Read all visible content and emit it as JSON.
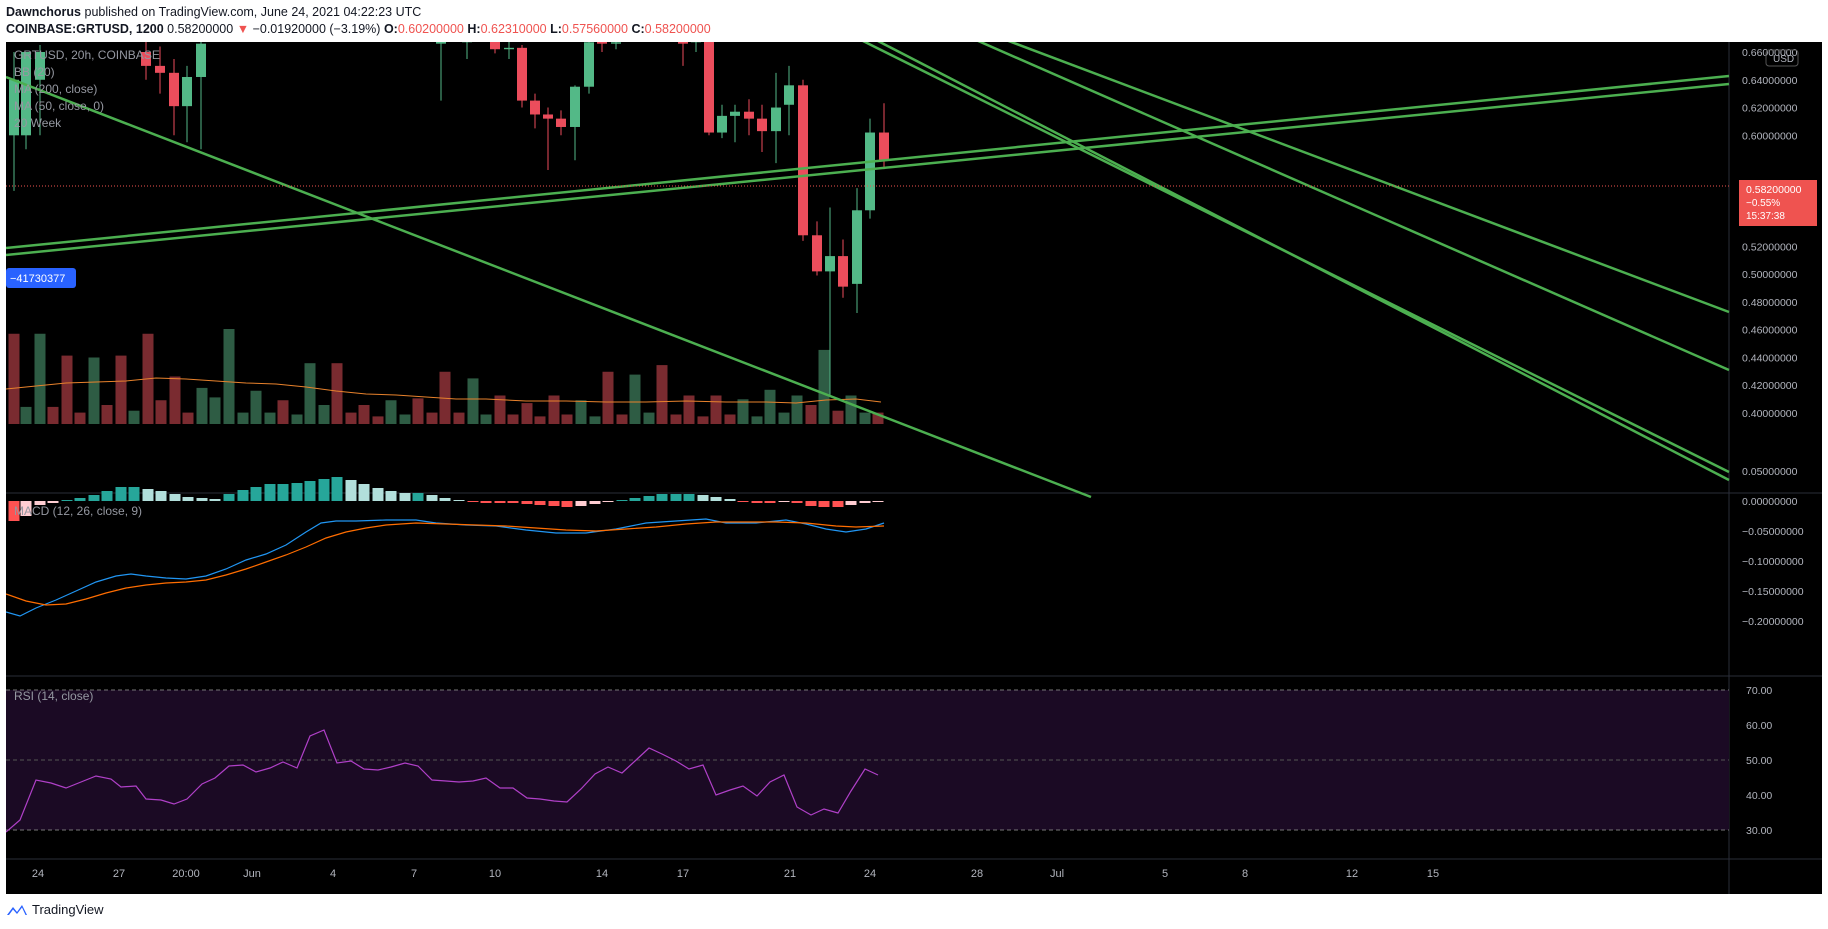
{
  "header": {
    "author": "Dawnchorus",
    "published_text": " published on TradingView.com, June 24, 2021 04:22:23 UTC",
    "symbol": "COINBASE:GRTUSD, 1200",
    "last": "0.58200000",
    "arrow": "▼",
    "change": "−0.01920000 (−3.19%)",
    "o_label": "O:",
    "o_val": "0.60200000",
    "h_label": "H:",
    "h_val": "0.62310000",
    "l_label": "L:",
    "l_val": "0.57560000",
    "c_label": "C:",
    "c_val": "0.58200000"
  },
  "legend": {
    "title": "GRTUSD, 20h, COINBASE",
    "line1": "BB (20)",
    "line2": "MA (200, close)",
    "line3": "MA (50, close, 0)",
    "line4": "20 Week",
    "left_badge": "−41730377"
  },
  "price_axis": {
    "currency": "USD",
    "ticks": [
      "0.66000000",
      "0.64000000",
      "0.62000000",
      "0.60000000",
      "0.56000000",
      "0.54000000",
      "0.52000000",
      "0.50000000",
      "0.48000000",
      "0.46000000",
      "0.44000000",
      "0.42000000",
      "0.40000000"
    ],
    "last_label": "0.58200000",
    "last_pct": "−0.55%",
    "countdown": "15:37:38"
  },
  "macd": {
    "title": "MACD (12, 26, close, 9)",
    "ticks": [
      "0.05000000",
      "0.00000000",
      "−0.05000000",
      "−0.10000000",
      "−0.15000000",
      "−0.20000000"
    ]
  },
  "rsi": {
    "title": "RSI (14, close)",
    "ticks": [
      "70.00",
      "60.00",
      "50.00",
      "40.00",
      "30.00"
    ]
  },
  "time_axis": {
    "labels": [
      "24",
      "27",
      "20:00",
      "Jun",
      "4",
      "7",
      "10",
      "14",
      "17",
      "21",
      "24",
      "28",
      "Jul",
      "5",
      "8",
      "12",
      "15"
    ]
  },
  "footer": {
    "brand": "TradingView"
  },
  "colors": {
    "up": "#26a69a",
    "down": "#ef5350",
    "up_body": "#53b987",
    "down_body": "#eb4d5c",
    "trend": "#4caf50",
    "macd": "#2196f3",
    "signal": "#ff6d00",
    "rsi": "#9c27b0"
  },
  "chart_data": {
    "type": "candlestick",
    "price_range": [
      0.39,
      0.67
    ],
    "candles_ohlc_sample": [
      {
        "t": "Jun 21",
        "o": 0.632,
        "h": 0.635,
        "l": 0.524,
        "c": 0.527
      },
      {
        "t": "Jun 21",
        "o": 0.527,
        "h": 0.535,
        "l": 0.499,
        "c": 0.502
      },
      {
        "t": "Jun 22",
        "o": 0.502,
        "h": 0.548,
        "l": 0.412,
        "c": 0.513
      },
      {
        "t": "Jun 22",
        "o": 0.513,
        "h": 0.525,
        "l": 0.483,
        "c": 0.491
      },
      {
        "t": "Jun 23",
        "o": 0.493,
        "h": 0.562,
        "l": 0.472,
        "c": 0.546
      },
      {
        "t": "Jun 23",
        "o": 0.546,
        "h": 0.612,
        "l": 0.54,
        "c": 0.602
      },
      {
        "t": "Jun 24",
        "o": 0.602,
        "h": 0.6231,
        "l": 0.5756,
        "c": 0.582
      }
    ],
    "macd_range": [
      -0.21,
      0.055
    ],
    "rsi_range": [
      20,
      75
    ],
    "rsi_levels": [
      70,
      50,
      30
    ]
  }
}
